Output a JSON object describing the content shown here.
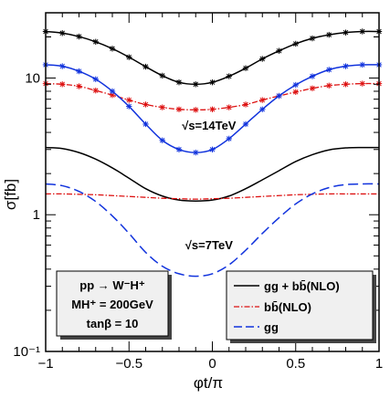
{
  "chart_data": {
    "type": "line",
    "xlabel": "φt/π",
    "ylabel": "σ[fb]",
    "xlim": [
      -1,
      1
    ],
    "ylim": [
      0.1,
      30
    ],
    "yscale": "log",
    "grid": false,
    "x_ticks": [
      -1,
      -0.5,
      0,
      0.5,
      1
    ],
    "x_tick_labels": [
      "−1",
      "−0.5",
      "0",
      "0.5",
      "1"
    ],
    "y_ticks": [
      0.1,
      1,
      10
    ],
    "y_tick_labels": [
      "10⁻¹",
      "1",
      "10"
    ],
    "annotations": [
      {
        "text": "√s=14TeV",
        "x": -0.02,
        "y": 4.2
      },
      {
        "text": "√s=7TeV",
        "x": -0.02,
        "y": 0.56
      }
    ],
    "info_box": {
      "lines": [
        "pp → W⁻H⁺",
        "MH⁺ = 200GeV",
        "tanβ = 10"
      ]
    },
    "legend": {
      "position": "bottom-right",
      "entries": [
        "gg + bb̄(NLO)",
        "bb̄(NLO)",
        "gg"
      ]
    },
    "x": [
      -1.0,
      -0.9,
      -0.8,
      -0.7,
      -0.6,
      -0.5,
      -0.4,
      -0.3,
      -0.2,
      -0.1,
      0.0,
      0.1,
      0.2,
      0.3,
      0.4,
      0.5,
      0.6,
      0.7,
      0.8,
      0.9,
      1.0
    ],
    "series": [
      {
        "name": "gg + bb̄(NLO)",
        "energy": "14TeV",
        "color": "#000000",
        "dash": "solid",
        "markers": true,
        "values": [
          21.9,
          21.3,
          20.1,
          18.4,
          16.4,
          14.2,
          12.1,
          10.4,
          9.3,
          9.0,
          9.3,
          10.3,
          11.8,
          13.8,
          15.8,
          17.8,
          19.5,
          20.7,
          21.5,
          21.9,
          21.9
        ]
      },
      {
        "name": "bb̄(NLO)",
        "energy": "14TeV",
        "color": "#dd1111",
        "dash": "dashdot",
        "markers": true,
        "values": [
          9.1,
          9.0,
          8.7,
          8.1,
          7.5,
          6.9,
          6.4,
          6.1,
          5.9,
          5.85,
          5.9,
          6.1,
          6.4,
          6.9,
          7.4,
          7.9,
          8.4,
          8.8,
          9.0,
          9.1,
          9.1
        ]
      },
      {
        "name": "gg",
        "energy": "14TeV",
        "color": "#1133dd",
        "dash": "solid",
        "markers": true,
        "values": [
          12.5,
          12.2,
          11.2,
          9.8,
          8.0,
          6.2,
          4.6,
          3.5,
          3.0,
          2.85,
          3.0,
          3.6,
          4.6,
          5.9,
          7.4,
          8.9,
          10.3,
          11.5,
          12.2,
          12.5,
          12.5
        ]
      },
      {
        "name": "gg + bb̄(NLO)",
        "energy": "7TeV",
        "color": "#000000",
        "dash": "solid",
        "markers": false,
        "values": [
          3.1,
          3.05,
          2.85,
          2.55,
          2.2,
          1.85,
          1.55,
          1.37,
          1.28,
          1.26,
          1.28,
          1.37,
          1.55,
          1.8,
          2.1,
          2.45,
          2.75,
          2.98,
          3.08,
          3.1,
          3.1
        ]
      },
      {
        "name": "bb̄(NLO)",
        "energy": "7TeV",
        "color": "#dd1111",
        "dash": "dashdot",
        "markers": false,
        "values": [
          1.42,
          1.42,
          1.41,
          1.4,
          1.38,
          1.36,
          1.34,
          1.32,
          1.31,
          1.3,
          1.31,
          1.32,
          1.34,
          1.36,
          1.38,
          1.4,
          1.41,
          1.42,
          1.42,
          1.42,
          1.42
        ]
      },
      {
        "name": "gg",
        "energy": "7TeV",
        "color": "#1133dd",
        "dash": "longdash",
        "markers": false,
        "values": [
          1.68,
          1.63,
          1.48,
          1.25,
          0.98,
          0.73,
          0.53,
          0.42,
          0.37,
          0.355,
          0.37,
          0.43,
          0.55,
          0.73,
          0.95,
          1.2,
          1.42,
          1.58,
          1.66,
          1.68,
          1.68
        ]
      }
    ]
  }
}
